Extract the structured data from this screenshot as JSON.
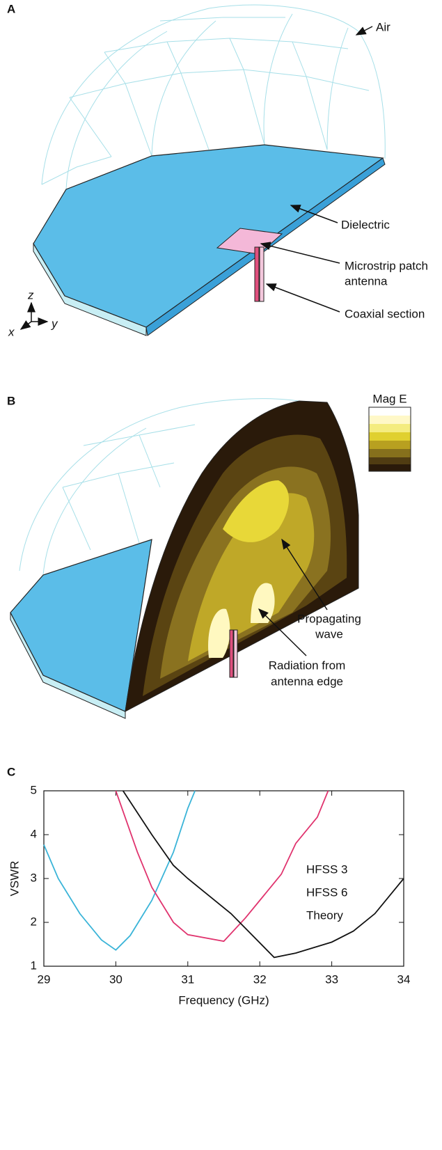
{
  "panel_a": {
    "label": "A",
    "air": "Air",
    "dielectric": "Dielectric",
    "patch": [
      "Microstrip patch",
      "antenna"
    ],
    "coax": "Coaxial section",
    "axes": {
      "z": "z",
      "x": "x",
      "y": "y"
    }
  },
  "panel_b": {
    "label": "B",
    "colorbar_title": "Mag E",
    "wave": [
      "Propagating",
      "wave"
    ],
    "radiation": [
      "Radiation from",
      "antenna edge"
    ]
  },
  "chart_data": {
    "type": "line",
    "label": "C",
    "xlabel": "Frequency (GHz)",
    "ylabel": "VSWR",
    "xlim": [
      29,
      34
    ],
    "ylim": [
      1,
      5
    ],
    "xticks": [
      29,
      30,
      31,
      32,
      33,
      34
    ],
    "yticks": [
      1,
      2,
      3,
      4,
      5
    ],
    "legend": "right",
    "series": [
      {
        "name": "HFSS 3",
        "color": "#3ab4d8",
        "x": [
          29,
          29.2,
          29.5,
          29.8,
          30,
          30.2,
          30.5,
          30.8,
          31,
          31.1
        ],
        "values": [
          3.77,
          3.0,
          2.2,
          1.6,
          1.37,
          1.7,
          2.5,
          3.6,
          4.6,
          5
        ]
      },
      {
        "name": "HFSS 6",
        "color": "#e0336e",
        "x": [
          30,
          30.3,
          30.5,
          30.8,
          31,
          31.5,
          31.8,
          32,
          32.3,
          32.5,
          32.8,
          32.95
        ],
        "values": [
          5,
          3.6,
          2.8,
          2.0,
          1.72,
          1.57,
          2.1,
          2.5,
          3.1,
          3.8,
          4.4,
          5
        ]
      },
      {
        "name": "Theory",
        "color": "#111111",
        "x": [
          30.1,
          30.5,
          30.8,
          31,
          31.3,
          31.6,
          31.9,
          32.2,
          32.5,
          33,
          33.3,
          33.6,
          34
        ],
        "values": [
          5,
          4.0,
          3.3,
          3.0,
          2.6,
          2.2,
          1.7,
          1.2,
          1.3,
          1.55,
          1.8,
          2.2,
          3.0
        ]
      }
    ]
  }
}
